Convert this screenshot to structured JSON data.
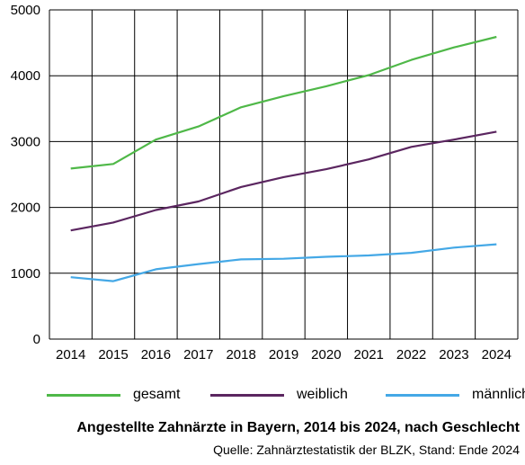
{
  "chart_data": {
    "type": "line",
    "x": [
      "2014",
      "2015",
      "2016",
      "2017",
      "2018",
      "2019",
      "2020",
      "2021",
      "2022",
      "2023",
      "2024"
    ],
    "series": [
      {
        "name": "gesamt",
        "color": "#4fb848",
        "values": [
          2590,
          2660,
          3030,
          3230,
          3520,
          3690,
          3840,
          4010,
          4240,
          4430,
          4590
        ]
      },
      {
        "name": "weiblich",
        "color": "#5b2660",
        "values": [
          1650,
          1770,
          1960,
          2090,
          2310,
          2460,
          2580,
          2730,
          2920,
          3030,
          3150
        ]
      },
      {
        "name": "männlich",
        "color": "#44a8e6",
        "values": [
          940,
          880,
          1060,
          1140,
          1210,
          1220,
          1250,
          1270,
          1310,
          1390,
          1440
        ]
      }
    ],
    "ylim": [
      0,
      5000
    ],
    "yticks": [
      "0",
      "1000",
      "2000",
      "3000",
      "4000",
      "5000"
    ],
    "grid": true,
    "legend_position": "bottom",
    "title": "Angestellte Zahnärzte in Bayern, 2014 bis 2024, nach Geschlecht",
    "source": "Quelle: Zahnärztestatistik der BLZK, Stand: Ende 2024"
  }
}
